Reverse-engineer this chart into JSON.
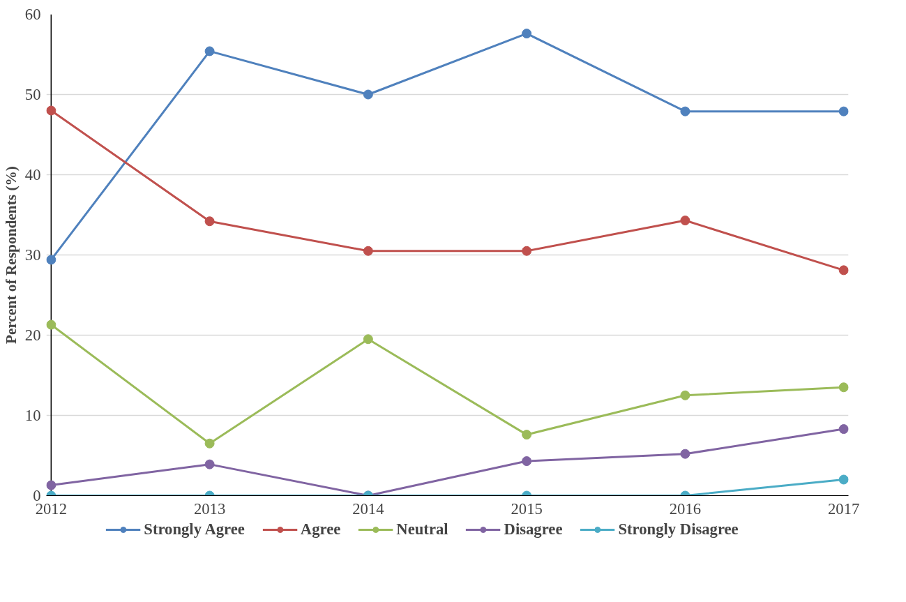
{
  "chart_data": {
    "type": "line",
    "ylabel": "Percent of Respondents (%)",
    "x": [
      2012,
      2013,
      2014,
      2015,
      2016,
      2017
    ],
    "xlim": [
      2011.97,
      2017.03
    ],
    "xticks": [
      2012,
      2013,
      2014,
      2015,
      2016,
      2017
    ],
    "ylim": [
      0,
      60
    ],
    "yticks": [
      0,
      10,
      20,
      30,
      40,
      50,
      60
    ],
    "grid": "y",
    "legend": "bottom",
    "marker": "circle",
    "line_style": "solid",
    "series": [
      {
        "name": "Strongly Agree",
        "color": "#4f81bd",
        "values": [
          29.4,
          55.4,
          50.0,
          57.6,
          47.9,
          47.9
        ]
      },
      {
        "name": "Agree",
        "color": "#c0504d",
        "values": [
          48.0,
          34.2,
          30.5,
          30.5,
          34.3,
          28.1
        ]
      },
      {
        "name": "Neutral",
        "color": "#9bbb59",
        "values": [
          21.3,
          6.5,
          19.5,
          7.6,
          12.5,
          13.5
        ]
      },
      {
        "name": "Disagree",
        "color": "#8064a2",
        "values": [
          1.3,
          3.9,
          0,
          4.3,
          5.2,
          8.3
        ]
      },
      {
        "name": "Strongly Disagree",
        "color": "#4bacc6",
        "values": [
          0,
          0,
          0,
          0,
          0,
          2.0
        ]
      }
    ]
  }
}
